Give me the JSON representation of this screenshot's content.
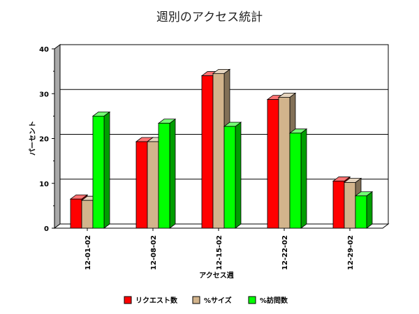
{
  "chart_data": {
    "type": "bar",
    "title": "週別のアクセス統計",
    "xlabel": "アクセス週",
    "ylabel": "パーセント",
    "categories": [
      "12-01-02",
      "12-08-02",
      "12-15-02",
      "12-22-02",
      "12-29-02"
    ],
    "ylim": [
      0,
      40
    ],
    "yticks": [
      0,
      10,
      20,
      30,
      40
    ],
    "grid": true,
    "legend_position": "bottom",
    "series": [
      {
        "name": "リクエスト数",
        "color": "#ff0000",
        "values": [
          6.5,
          19.3,
          34,
          28.7,
          10.5
        ]
      },
      {
        "name": "%サイズ",
        "color": "#d2b48c",
        "values": [
          6.2,
          19.3,
          34.5,
          29.2,
          10.2
        ]
      },
      {
        "name": "%訪問数",
        "color": "#00ff00",
        "values": [
          25,
          23.4,
          22.7,
          21.2,
          7.2
        ]
      }
    ]
  }
}
